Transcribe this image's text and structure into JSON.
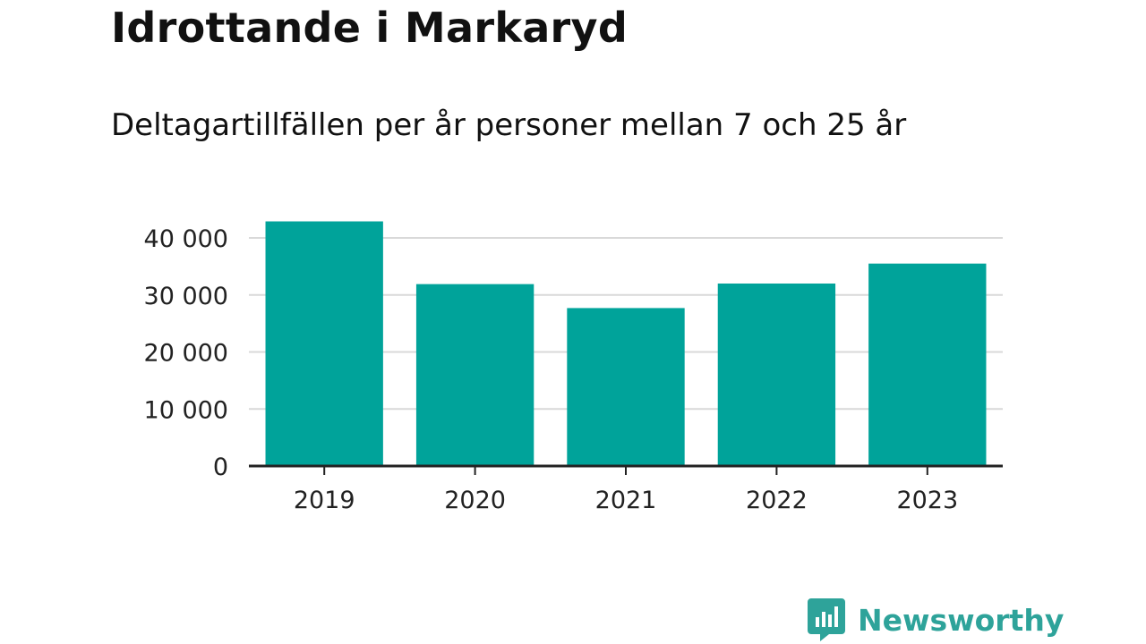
{
  "header": {
    "title": "Idrottande i Markaryd",
    "subtitle": "Deltagartillfällen per år personer mellan 7 och 25 år"
  },
  "brand": {
    "name": "Newsworthy",
    "icon": "bar-chart-bubble-icon",
    "color": "#2ea39a"
  },
  "colors": {
    "bar": "#00a39a",
    "grid": "#d9d9d9",
    "axis": "#222222"
  },
  "chart_data": {
    "type": "bar",
    "categories": [
      "2019",
      "2020",
      "2021",
      "2022",
      "2023"
    ],
    "values": [
      42900,
      31900,
      27700,
      32000,
      35500
    ],
    "ylim": [
      0,
      40000
    ],
    "yticks": [
      0,
      10000,
      20000,
      30000,
      40000
    ],
    "ytick_labels": [
      "0",
      "10 000",
      "20 000",
      "30 000",
      "40 000"
    ],
    "grid": true,
    "xlabel": "",
    "ylabel": ""
  }
}
